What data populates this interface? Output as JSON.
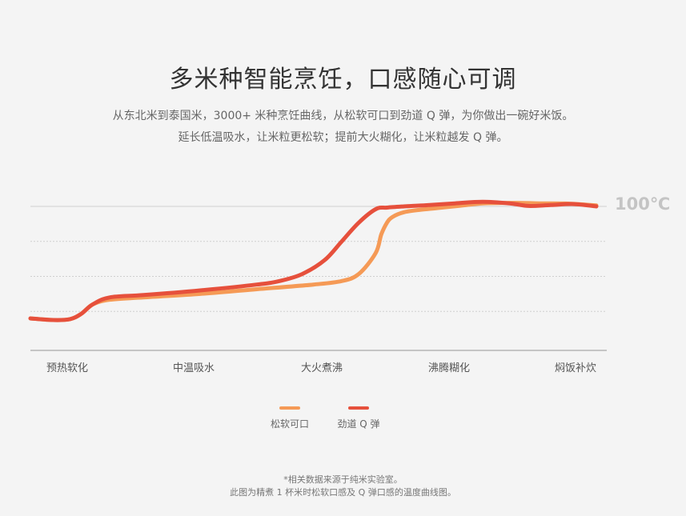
{
  "header": {
    "title": "多米种智能烹饪，口感随心可调",
    "subtitle_line1": "从东北米到泰国米，3000+ 米种烹饪曲线，从松软可口到劲道 Q 弹，为你做出一碗好米饭。",
    "subtitle_line2": "延长低温吸水，让米粒更松软；提前大火糊化，让米粒越发 Q 弹。"
  },
  "chart_data": {
    "type": "line",
    "categories": [
      "预热软化",
      "中温吸水",
      "大火煮沸",
      "沸腾糊化",
      "焖饭补炊"
    ],
    "annotations": [
      {
        "text": "100℃",
        "y": 100
      }
    ],
    "ylim": [
      40,
      110
    ],
    "y_gridlines": [
      100,
      85,
      70,
      55
    ],
    "grid": true,
    "legend_position": "bottom-center",
    "x_range": [
      0,
      100
    ],
    "series": [
      {
        "name": "松软可口",
        "color": "#f59a56",
        "x": [
          0,
          4,
          7,
          9,
          11,
          14,
          20,
          30,
          40,
          50,
          55,
          58,
          61,
          62,
          63,
          64,
          66,
          69,
          72,
          76,
          80,
          86,
          90,
          95,
          100
        ],
        "y": [
          52,
          51.3,
          51.7,
          54,
          58,
          60,
          61,
          62.5,
          64.5,
          66.5,
          68,
          71,
          80,
          88,
          93,
          95.5,
          97.5,
          98.6,
          99.3,
          100.3,
          101.3,
          101.5,
          101.3,
          101.2,
          100.4
        ]
      },
      {
        "name": "劲道 Q 弹",
        "color": "#e6503c",
        "x": [
          0,
          4,
          7,
          9,
          11,
          14,
          20,
          30,
          40,
          44,
          48,
          52,
          55,
          58,
          61,
          63,
          66,
          70,
          75,
          80,
          85,
          88,
          92,
          96,
          100
        ],
        "y": [
          52,
          51.3,
          51.7,
          54,
          58,
          61,
          62,
          64,
          66.5,
          68,
          71,
          77,
          85,
          93,
          98.8,
          99.5,
          100,
          100.5,
          101.3,
          102,
          101.2,
          100.2,
          100.6,
          101,
          100
        ]
      }
    ]
  },
  "legend": [
    {
      "label": "松软可口",
      "color": "#f59a56"
    },
    {
      "label": "劲道 Q 弹",
      "color": "#e6503c"
    }
  ],
  "footnote": {
    "line1": "*相关数据来源于纯米实验室。",
    "line2": "此图为精煮 1 杯米时松软口感及 Q 弹口感的温度曲线图。"
  }
}
